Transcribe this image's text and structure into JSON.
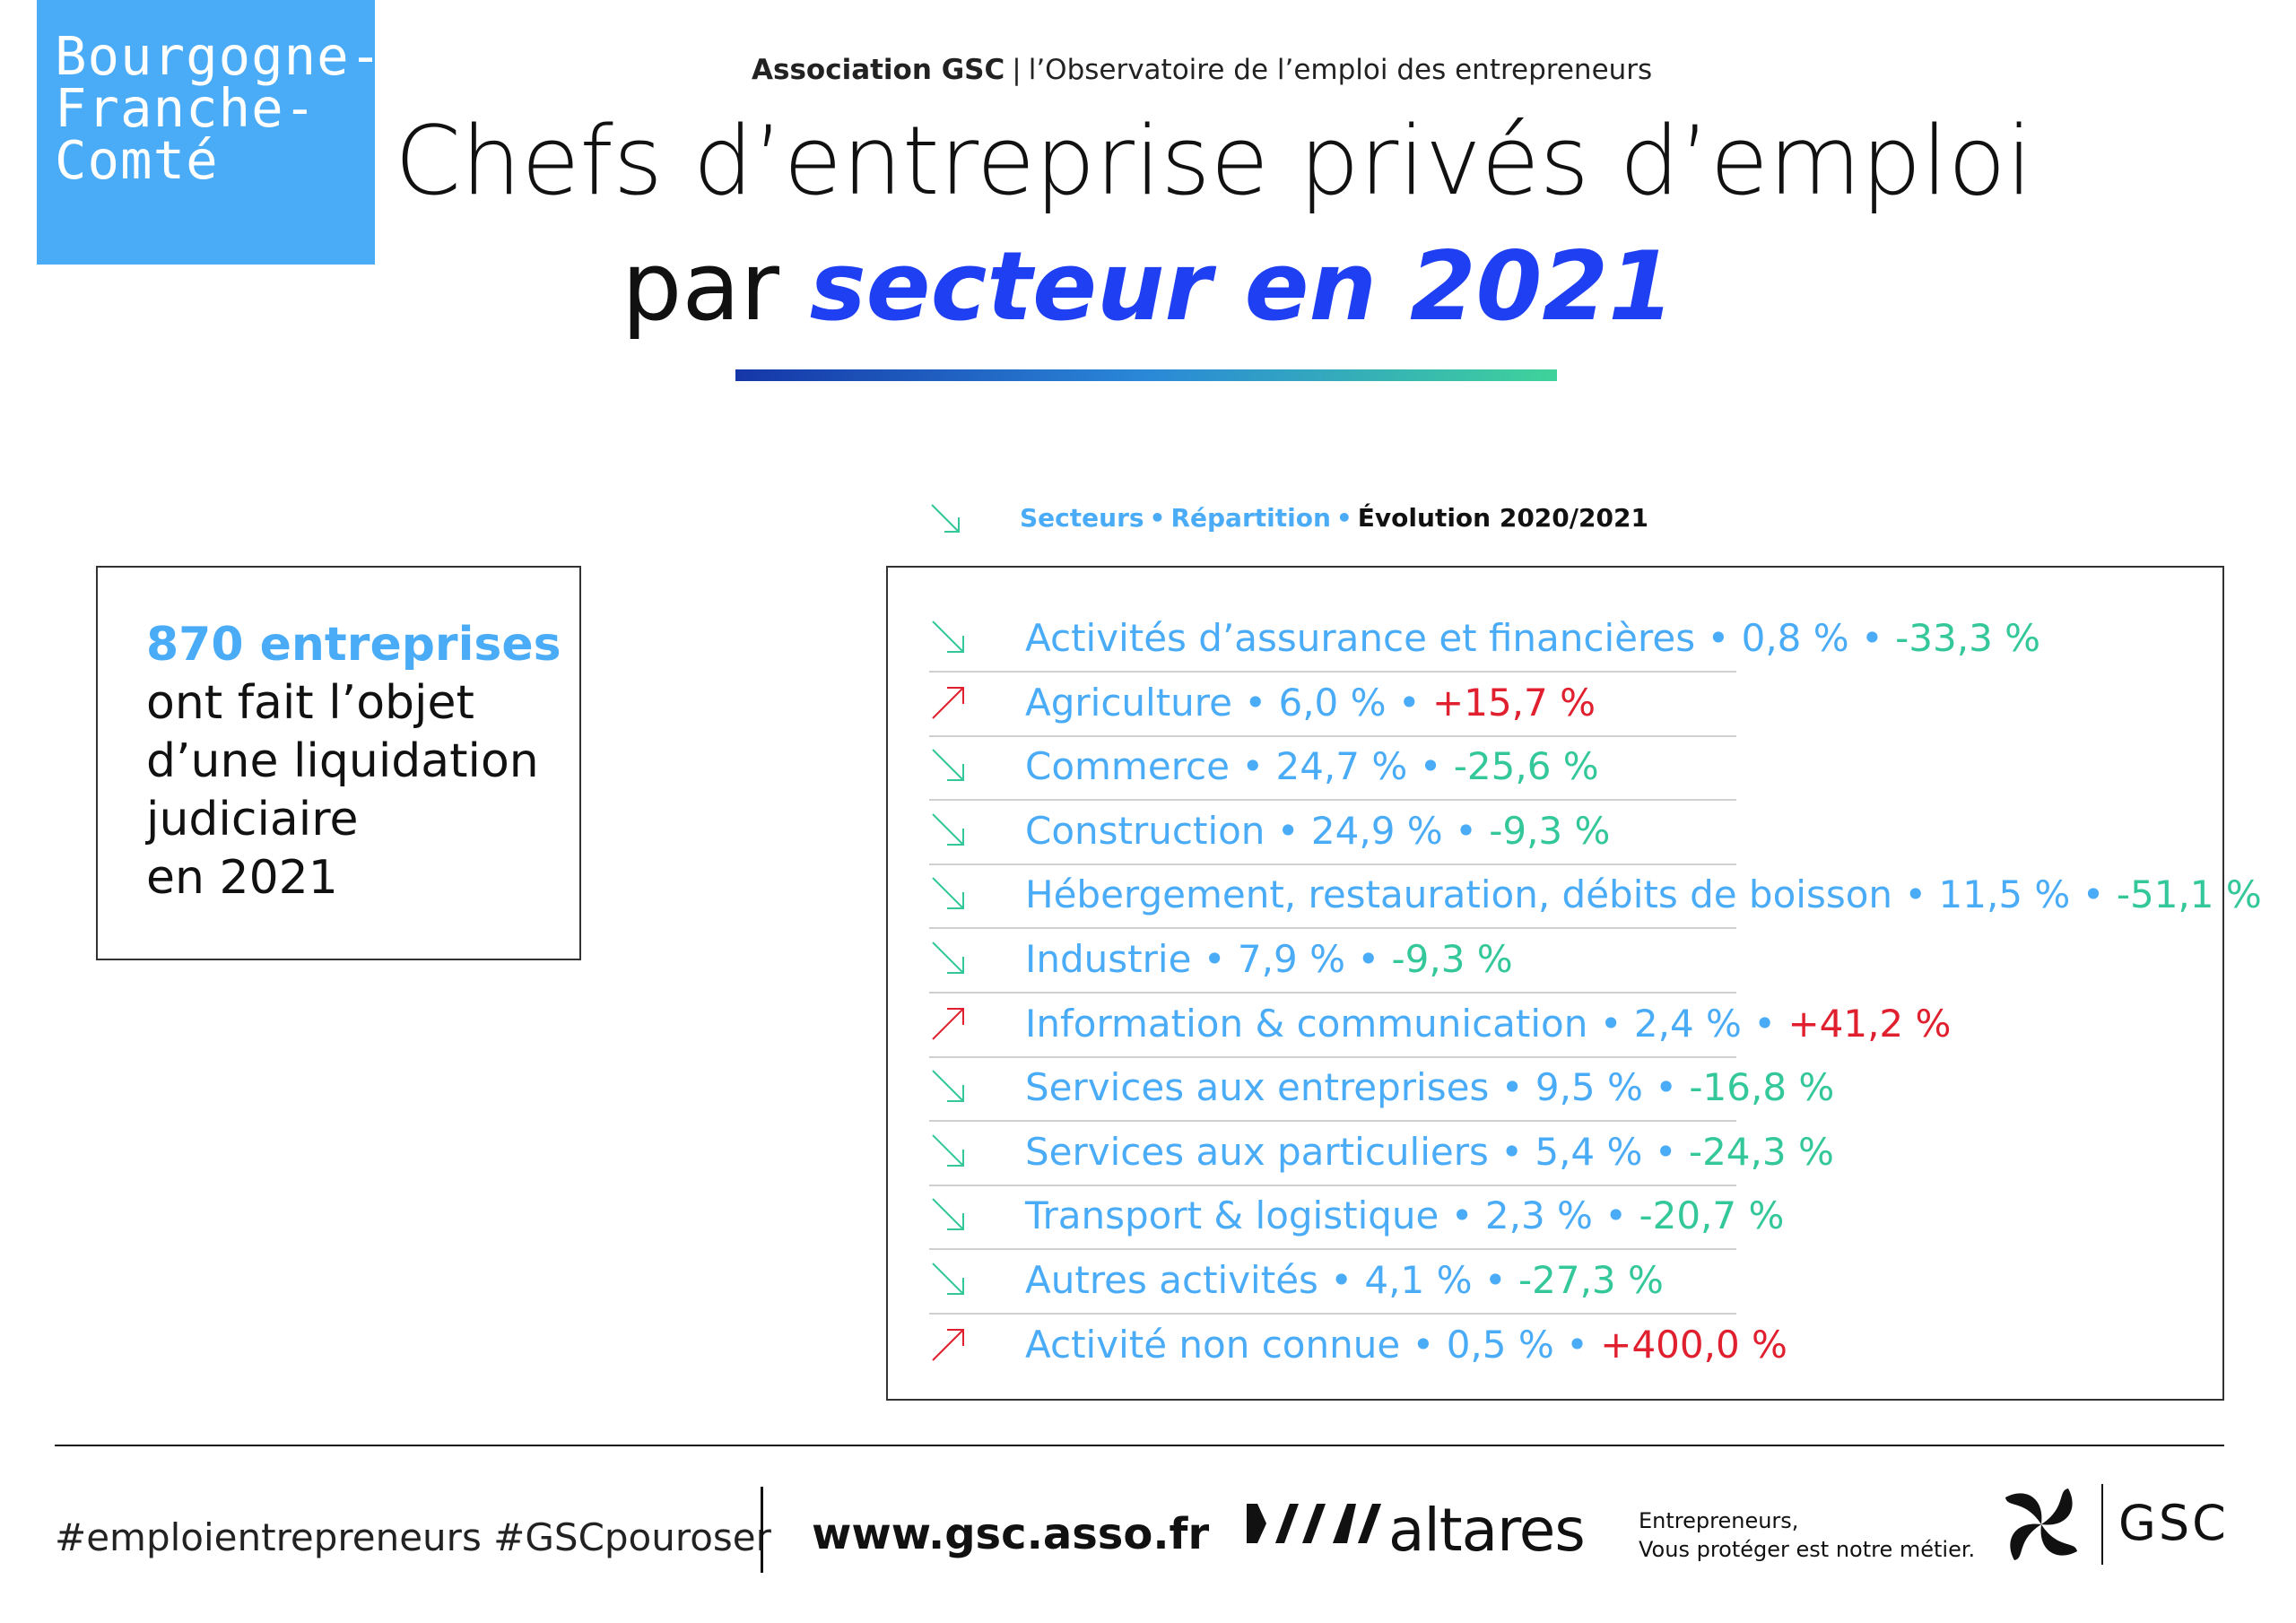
{
  "region": {
    "lines": [
      "Bourgogne-",
      "Franche-",
      "Comté"
    ]
  },
  "header": {
    "org": "Association GSC",
    "separator": "|",
    "subtitle": "l’Observatoire de l’emploi des entrepreneurs",
    "title_line1": "Chefs d’entreprise privés d’emploi",
    "title_line2_prefix": "par ",
    "title_line2_accent": "secteur en 2021"
  },
  "legend": {
    "arrow_icon": "arrow-down-right-icon",
    "label_secteurs": "Secteurs",
    "label_repartition": "Répartition",
    "label_evolution": "Évolution 2020/2021",
    "dot": "•"
  },
  "summary": {
    "highlight": "870 entreprises",
    "lines": [
      "ont fait l’objet",
      "d’une liquidation",
      "judiciaire",
      "en 2021"
    ]
  },
  "sectors": [
    {
      "name": "Activités d’assurance et financières",
      "share": "0,8 %",
      "evolution": "-33,3 %",
      "trend": "down"
    },
    {
      "name": "Agriculture",
      "share": "6,0 %",
      "evolution": "+15,7 %",
      "trend": "up"
    },
    {
      "name": "Commerce",
      "share": "24,7 %",
      "evolution": "-25,6 %",
      "trend": "down"
    },
    {
      "name": "Construction",
      "share": "24,9 %",
      "evolution": "-9,3 %",
      "trend": "down"
    },
    {
      "name": "Hébergement, restauration, débits de boisson",
      "share": "11,5 %",
      "evolution": "-51,1 %",
      "trend": "down"
    },
    {
      "name": "Industrie",
      "share": "7,9 %",
      "evolution": "-9,3 %",
      "trend": "down"
    },
    {
      "name": "Information & communication",
      "share": "2,4 %",
      "evolution": "+41,2 %",
      "trend": "up"
    },
    {
      "name": "Services aux entreprises",
      "share": "9,5 %",
      "evolution": "-16,8 %",
      "trend": "down"
    },
    {
      "name": "Services aux particuliers",
      "share": "5,4 %",
      "evolution": "-24,3 %",
      "trend": "down"
    },
    {
      "name": "Transport & logistique",
      "share": "2,3 %",
      "evolution": "-20,7 %",
      "trend": "down"
    },
    {
      "name": "Autres activités",
      "share": "4,1 %",
      "evolution": "-27,3 %",
      "trend": "down"
    },
    {
      "name": "Activité non connue",
      "share": "0,5 %",
      "evolution": "+400,0 %",
      "trend": "up"
    }
  ],
  "footer": {
    "hashtags": "#emploientrepreneurs #GSCpouroser",
    "website": "www.gsc.asso.fr",
    "partner_wordmark": "altares",
    "partner_icon": "altares-logo-icon",
    "tagline_line1": "Entrepreneurs,",
    "tagline_line2": "Vous protéger est notre métier.",
    "gsc_wordmark": "GSC",
    "gsc_icon": "gsc-logo-icon"
  },
  "colors": {
    "badge": "#4aabf7",
    "accent": "#1f3ff2",
    "sector_text": "#4aabf7",
    "down": "#34c79a",
    "up": "#e0202f"
  }
}
